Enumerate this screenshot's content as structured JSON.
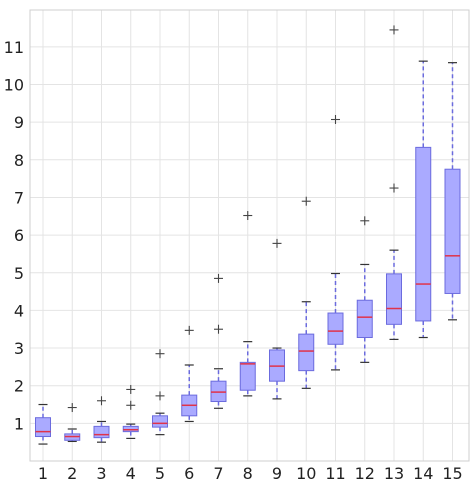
{
  "chart_data": {
    "type": "boxplot",
    "title": "",
    "xlabel": "",
    "ylabel": "",
    "ylim": [
      0,
      11.8
    ],
    "categories": [
      "1",
      "2",
      "3",
      "4",
      "5",
      "6",
      "7",
      "8",
      "9",
      "10",
      "11",
      "12",
      "13",
      "14",
      "15"
    ],
    "y_ticks": [
      1,
      2,
      3,
      4,
      5,
      6,
      7,
      8,
      9,
      10,
      11
    ],
    "grid": true,
    "colors": {
      "box_fill": "#aaaaff",
      "box_edge": "#6b6bde",
      "median": "#e0334a",
      "whisker": "#6b6bde",
      "cap": "#333333",
      "flier": "#444444",
      "grid": "#e4e4e4"
    },
    "boxes": [
      {
        "label": "1",
        "whislo": 0.45,
        "q1": 0.65,
        "med": 0.78,
        "q3": 1.15,
        "whishi": 1.5,
        "fliers": []
      },
      {
        "label": "2",
        "whislo": 0.52,
        "q1": 0.55,
        "med": 0.65,
        "q3": 0.72,
        "whishi": 0.85,
        "fliers": [
          1.42
        ]
      },
      {
        "label": "3",
        "whislo": 0.5,
        "q1": 0.62,
        "med": 0.7,
        "q3": 0.92,
        "whishi": 1.05,
        "fliers": [
          1.6
        ]
      },
      {
        "label": "4",
        "whislo": 0.6,
        "q1": 0.78,
        "med": 0.83,
        "q3": 0.92,
        "whishi": 0.98,
        "fliers": [
          1.48,
          1.9
        ]
      },
      {
        "label": "5",
        "whislo": 0.7,
        "q1": 0.9,
        "med": 1.0,
        "q3": 1.2,
        "whishi": 1.27,
        "fliers": [
          1.73,
          2.85
        ]
      },
      {
        "label": "6",
        "whislo": 1.05,
        "q1": 1.2,
        "med": 1.48,
        "q3": 1.75,
        "whishi": 2.55,
        "fliers": [
          3.47
        ]
      },
      {
        "label": "7",
        "whislo": 1.4,
        "q1": 1.58,
        "med": 1.83,
        "q3": 2.12,
        "whishi": 2.45,
        "fliers": [
          3.5,
          4.85
        ]
      },
      {
        "label": "8",
        "whislo": 1.73,
        "q1": 1.88,
        "med": 2.58,
        "q3": 2.62,
        "whishi": 3.17,
        "fliers": [
          6.52
        ]
      },
      {
        "label": "9",
        "whislo": 1.65,
        "q1": 2.12,
        "med": 2.52,
        "q3": 2.95,
        "whishi": 3.0,
        "fliers": [
          5.78
        ]
      },
      {
        "label": "10",
        "whislo": 1.93,
        "q1": 2.4,
        "med": 2.92,
        "q3": 3.37,
        "whishi": 4.23,
        "fliers": [
          6.9
        ]
      },
      {
        "label": "11",
        "whislo": 2.42,
        "q1": 3.1,
        "med": 3.45,
        "q3": 3.93,
        "whishi": 4.98,
        "fliers": [
          9.07
        ]
      },
      {
        "label": "12",
        "whislo": 2.62,
        "q1": 3.28,
        "med": 3.82,
        "q3": 4.27,
        "whishi": 5.22,
        "fliers": [
          6.38
        ]
      },
      {
        "label": "13",
        "whislo": 3.23,
        "q1": 3.63,
        "med": 4.05,
        "q3": 4.97,
        "whishi": 5.6,
        "fliers": [
          7.25,
          11.45
        ]
      },
      {
        "label": "14",
        "whislo": 3.28,
        "q1": 3.72,
        "med": 4.7,
        "q3": 8.33,
        "whishi": 10.62,
        "fliers": []
      },
      {
        "label": "15",
        "whislo": 3.75,
        "q1": 4.45,
        "med": 5.45,
        "q3": 7.75,
        "whishi": 10.58,
        "fliers": []
      }
    ]
  }
}
